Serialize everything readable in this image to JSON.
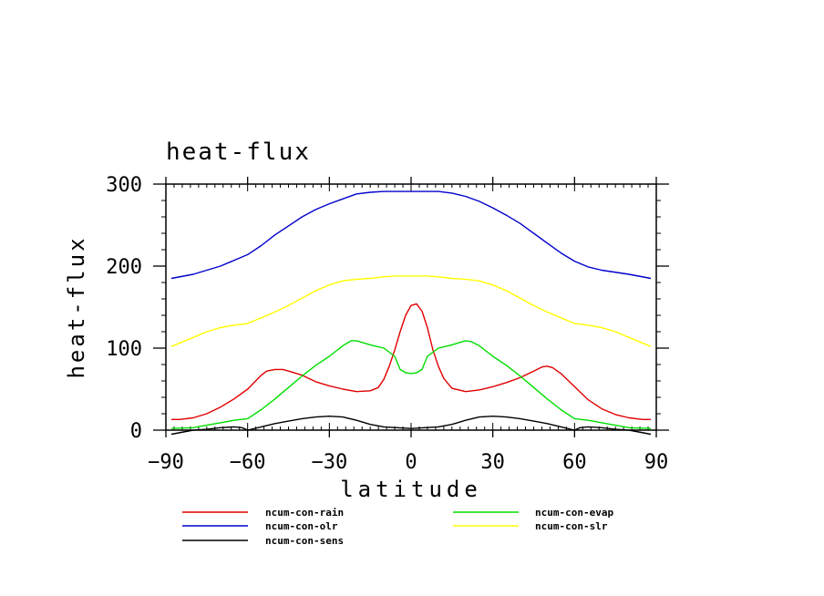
{
  "chart_data": {
    "type": "line",
    "title": "heat-flux",
    "xlabel": "latitude",
    "ylabel": "heat-flux",
    "xlim": [
      -90,
      90
    ],
    "ylim": [
      0,
      300
    ],
    "xticks": [
      -90,
      -60,
      -30,
      0,
      30,
      60,
      90
    ],
    "yticks": [
      0,
      100,
      200,
      300
    ],
    "xtick_labels": [
      "−90",
      "−60",
      "−30",
      "0",
      "30",
      "60",
      "90"
    ],
    "ytick_labels": [
      "0",
      "100",
      "200",
      "300"
    ],
    "grid": false,
    "legend_position": "below",
    "series": [
      {
        "name": "ncum-con-rain",
        "color": "#e00000",
        "x": [
          -88,
          -85,
          -80,
          -75,
          -70,
          -65,
          -60,
          -55,
          -53,
          -50,
          -47,
          -45,
          -40,
          -35,
          -30,
          -25,
          -20,
          -15,
          -12,
          -10,
          -8,
          -6,
          -4,
          -2,
          0,
          2,
          4,
          6,
          8,
          10,
          12,
          15,
          20,
          25,
          30,
          35,
          40,
          45,
          48,
          50,
          52,
          55,
          60,
          65,
          70,
          75,
          80,
          85,
          88
        ],
        "y": [
          13,
          13,
          15,
          20,
          28,
          38,
          50,
          67,
          72,
          74,
          74,
          72,
          67,
          59,
          54,
          50,
          47,
          48,
          52,
          62,
          78,
          98,
          120,
          140,
          152,
          154,
          145,
          125,
          98,
          78,
          63,
          51,
          47,
          49,
          53,
          58,
          64,
          72,
          77,
          78,
          76,
          69,
          53,
          37,
          26,
          19,
          15,
          13,
          13
        ]
      },
      {
        "name": "ncum-con-olr",
        "color": "#0000cc",
        "x": [
          -88,
          -80,
          -70,
          -60,
          -55,
          -50,
          -45,
          -40,
          -35,
          -30,
          -25,
          -20,
          -15,
          -10,
          -5,
          0,
          5,
          10,
          15,
          20,
          25,
          30,
          35,
          40,
          45,
          50,
          55,
          60,
          65,
          70,
          80,
          88
        ],
        "y": [
          185,
          190,
          200,
          214,
          225,
          238,
          249,
          260,
          269,
          276,
          282,
          288,
          290,
          291,
          291,
          291,
          291,
          291,
          289,
          285,
          279,
          271,
          262,
          252,
          240,
          228,
          216,
          206,
          199,
          195,
          190,
          185
        ]
      },
      {
        "name": "ncum-con-sens",
        "color": "#000000",
        "x": [
          -88,
          -80,
          -75,
          -70,
          -65,
          -62,
          -60,
          -55,
          -50,
          -45,
          -40,
          -35,
          -30,
          -25,
          -20,
          -15,
          -10,
          -5,
          0,
          5,
          10,
          15,
          20,
          25,
          30,
          35,
          40,
          45,
          50,
          55,
          60,
          62,
          65,
          70,
          75,
          80,
          88
        ],
        "y": [
          -5,
          0,
          1,
          3,
          4,
          3,
          0,
          4,
          8,
          11,
          14,
          16,
          17,
          16,
          12,
          7,
          4,
          3,
          2,
          3,
          4,
          7,
          12,
          16,
          17,
          16,
          14,
          11,
          8,
          4,
          0,
          3,
          4,
          3,
          1,
          0,
          -5
        ]
      },
      {
        "name": "ncum-con-evap",
        "color": "#00dd00",
        "x": [
          -88,
          -80,
          -75,
          -70,
          -65,
          -60,
          -55,
          -50,
          -45,
          -40,
          -35,
          -30,
          -25,
          -22,
          -20,
          -18,
          -15,
          -10,
          -6,
          -4,
          -2,
          0,
          2,
          4,
          6,
          10,
          15,
          18,
          20,
          22,
          25,
          30,
          35,
          40,
          45,
          50,
          55,
          60,
          65,
          70,
          75,
          80,
          88
        ],
        "y": [
          2,
          3,
          6,
          9,
          12,
          14,
          25,
          38,
          52,
          66,
          79,
          90,
          103,
          109,
          109,
          107,
          104,
          100,
          90,
          74,
          70,
          69,
          70,
          74,
          90,
          100,
          104,
          107,
          109,
          108,
          103,
          90,
          79,
          66,
          52,
          38,
          25,
          14,
          12,
          9,
          6,
          3,
          2
        ]
      },
      {
        "name": "ncum-con-slr",
        "color": "#ffff00",
        "x": [
          -88,
          -80,
          -75,
          -70,
          -65,
          -60,
          -55,
          -50,
          -45,
          -40,
          -35,
          -30,
          -25,
          -20,
          -15,
          -10,
          -5,
          0,
          5,
          10,
          15,
          20,
          25,
          30,
          35,
          40,
          45,
          50,
          55,
          60,
          65,
          70,
          75,
          80,
          88
        ],
        "y": [
          102,
          113,
          120,
          125,
          128,
          130,
          137,
          144,
          152,
          161,
          170,
          177,
          182,
          184,
          185,
          187,
          188,
          188,
          188,
          187,
          185,
          184,
          182,
          177,
          170,
          161,
          152,
          144,
          137,
          130,
          128,
          125,
          120,
          113,
          102
        ]
      }
    ]
  }
}
